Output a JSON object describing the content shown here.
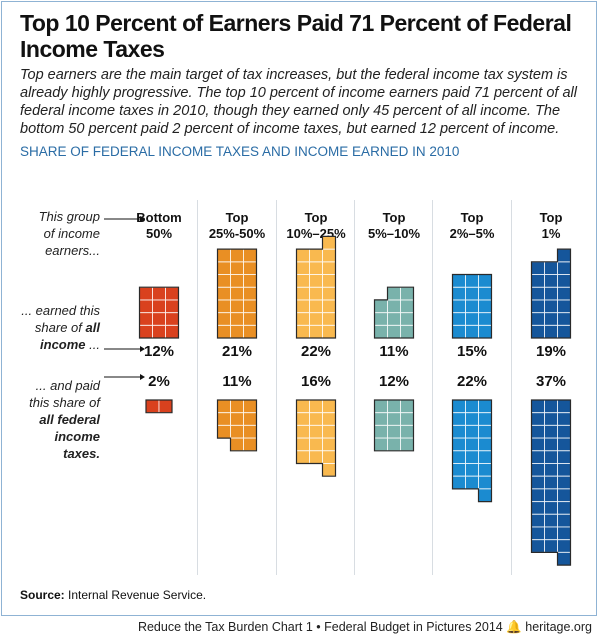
{
  "title": "Top 10 Percent of Earners Paid 71 Percent of Federal Income Taxes",
  "subtitle": "Top earners are the main target of tax increases, but the federal income tax system is already highly progressive. The top 10 percent of income earners paid 71 percent of all federal income taxes in 2010, though they earned only 45 percent of all income. The bottom 50 percent paid 2 percent of income taxes, but earned 12 percent of income.",
  "row_labels": {
    "group_pre": "This group",
    "group_post": "of income earners...",
    "income_pre": "... earned this share of",
    "income_bold": "all income",
    "income_post": "...",
    "tax_pre": "... and paid this share of",
    "tax_bold": "all federal income taxes."
  },
  "chart_data": {
    "type": "pictogram",
    "title": "SHARE OF FEDERAL INCOME TAXES AND INCOME EARNED IN 2010",
    "unit": "each square = 1%",
    "categories": [
      {
        "top": "Bottom",
        "bottom": "50%"
      },
      {
        "top": "Top",
        "bottom": "25%-50%"
      },
      {
        "top": "Top",
        "bottom": "10%–25%"
      },
      {
        "top": "Top",
        "bottom": "5%–10%"
      },
      {
        "top": "Top",
        "bottom": "2%–5%"
      },
      {
        "top": "Top",
        "bottom": "1%"
      }
    ],
    "series": [
      {
        "name": "share of all income",
        "values": [
          12,
          21,
          22,
          11,
          15,
          19
        ],
        "labels": [
          "12%",
          "21%",
          "22%",
          "11%",
          "15%",
          "19%"
        ]
      },
      {
        "name": "share of all federal income taxes",
        "values": [
          2,
          11,
          16,
          12,
          22,
          37
        ],
        "labels": [
          "2%",
          "11%",
          "16%",
          "12%",
          "22%",
          "37%"
        ]
      }
    ],
    "colors": [
      "#d9411e",
      "#e98f24",
      "#f9b94f",
      "#79b2ab",
      "#1b8bd0",
      "#15569b"
    ]
  },
  "source_label": "Source:",
  "source_text": "Internal Revenue Service.",
  "footer": "Reduce the Tax Burden Chart 1  •  Federal Budget in Pictures 2014",
  "footer_site": "heritage.org",
  "logo_icon": "liberty-bell-icon"
}
